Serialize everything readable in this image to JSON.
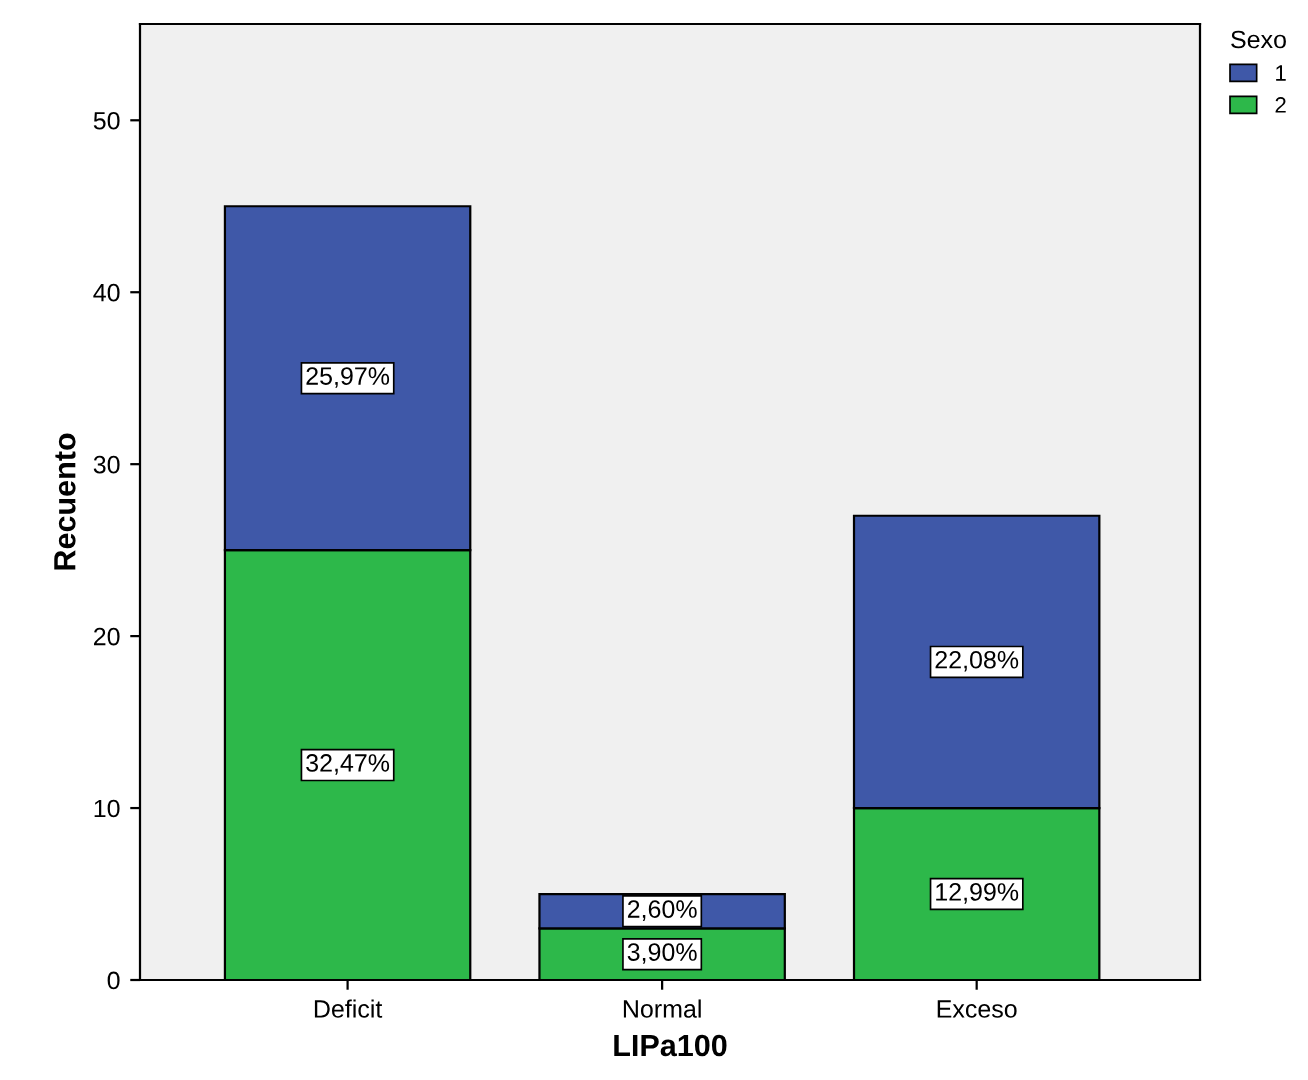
{
  "chart_data": {
    "type": "bar",
    "stacked": true,
    "xlabel": "LIPa100",
    "ylabel": "Recuento",
    "legend_title": "Sexo",
    "legend": "top right",
    "categories": [
      "Deficit",
      "Normal",
      "Exceso"
    ],
    "series": [
      {
        "name": "2",
        "color": "#2db84a",
        "values": [
          25,
          3,
          10
        ]
      },
      {
        "name": "1",
        "color": "#3f58a8",
        "values": [
          20,
          2,
          17
        ]
      }
    ],
    "annotations": [
      "32,47%",
      "3,90%",
      "12,99%",
      "25,97%",
      "2,60%",
      "22,08%"
    ],
    "ylim": [
      0,
      55.6
    ],
    "yticks": [
      0,
      10,
      20,
      30,
      40,
      50
    ]
  }
}
